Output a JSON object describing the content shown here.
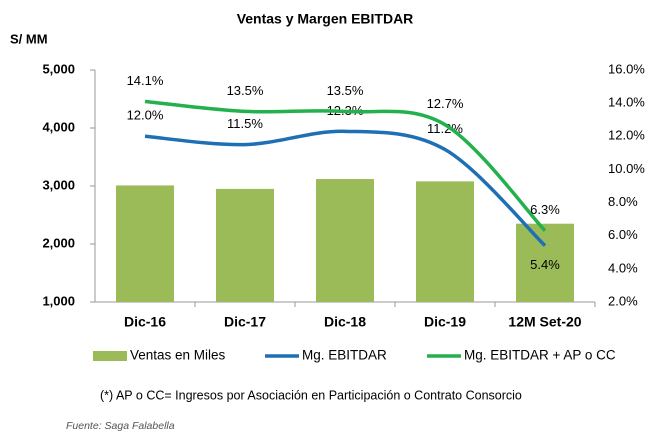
{
  "chart_data": {
    "type": "bar-line",
    "title": "Ventas y Margen EBITDAR",
    "y_label": "S/ MM",
    "categories": [
      "Dic-16",
      "Dic-17",
      "Dic-18",
      "Dic-19",
      "12M Set-20"
    ],
    "series": [
      {
        "name": "Ventas en Miles",
        "type": "bar",
        "color": "#9bbb59",
        "values": [
          3010,
          2950,
          3120,
          3080,
          2350
        ]
      },
      {
        "name": "Mg. EBITDAR",
        "type": "line",
        "axis": "y2",
        "color": "#1f6fb4",
        "values": [
          12.0,
          11.5,
          12.3,
          11.2,
          5.4
        ],
        "value_labels": [
          "12.0%",
          "11.5%",
          "12.3%",
          "11.2%",
          "5.4%"
        ]
      },
      {
        "name": "Mg. EBITDAR + AP o CC",
        "type": "line",
        "axis": "y2",
        "color": "#22b14c",
        "values": [
          14.1,
          13.5,
          13.5,
          12.7,
          6.3
        ],
        "value_labels": [
          "14.1%",
          "13.5%",
          "13.5%",
          "12.7%",
          "6.3%"
        ]
      }
    ],
    "ylim": [
      1000,
      5000
    ],
    "yticks": [
      {
        "value": 1000,
        "label": "1,000"
      },
      {
        "value": 2000,
        "label": "2,000"
      },
      {
        "value": 3000,
        "label": "3,000"
      },
      {
        "value": 4000,
        "label": "4,000"
      },
      {
        "value": 5000,
        "label": "5,000"
      }
    ],
    "y2lim": [
      2,
      16
    ],
    "y2ticks": [
      {
        "value": 2,
        "label": "2.0%"
      },
      {
        "value": 4,
        "label": "4.0%"
      },
      {
        "value": 6,
        "label": "6.0%"
      },
      {
        "value": 8,
        "label": "8.0%"
      },
      {
        "value": 10,
        "label": "10.0%"
      },
      {
        "value": 12,
        "label": "12.0%"
      },
      {
        "value": 14,
        "label": "14.0%"
      },
      {
        "value": 16,
        "label": "16.0%"
      }
    ],
    "note": "(*) AP o CC= Ingresos por Asociación en Participación o Contrato Consorcio",
    "source": "Fuente: Saga Falabella"
  }
}
